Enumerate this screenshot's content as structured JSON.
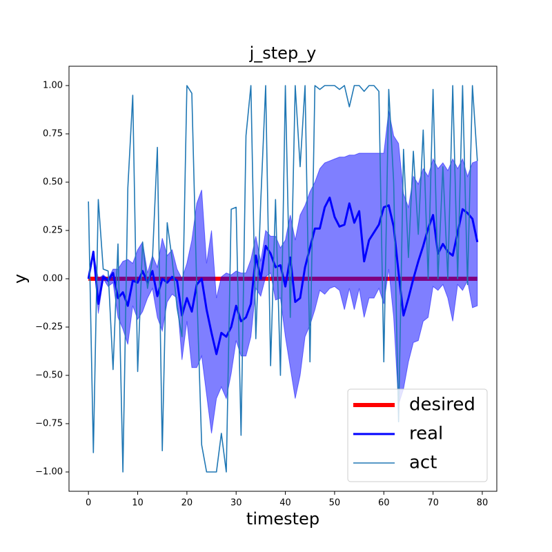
{
  "chart_data": {
    "type": "line",
    "title": "j_step_y",
    "x_label": "timestep",
    "y_label": "y",
    "x": [
      0,
      1,
      2,
      3,
      4,
      5,
      6,
      7,
      8,
      9,
      10,
      11,
      12,
      13,
      14,
      15,
      16,
      17,
      18,
      19,
      20,
      21,
      22,
      23,
      24,
      25,
      26,
      27,
      28,
      29,
      30,
      31,
      32,
      33,
      34,
      35,
      36,
      37,
      38,
      39,
      40,
      41,
      42,
      43,
      44,
      45,
      46,
      47,
      48,
      49,
      50,
      51,
      52,
      53,
      54,
      55,
      56,
      57,
      58,
      59,
      60,
      61,
      62,
      63,
      64,
      65,
      66,
      67,
      68,
      69,
      70,
      71,
      72,
      73,
      74,
      75,
      76,
      77,
      78,
      79
    ],
    "series": [
      {
        "name": "desired",
        "color": "#ff0000",
        "width": 6,
        "values": [
          0,
          0,
          0,
          0,
          0,
          0,
          0,
          0,
          0,
          0,
          0,
          0,
          0,
          0,
          0,
          0,
          0,
          0,
          0,
          0,
          0,
          0,
          0,
          0,
          0,
          0,
          0,
          0,
          0,
          0,
          0,
          0,
          0,
          0,
          0,
          0,
          0,
          0,
          0,
          0,
          0,
          0,
          0,
          0,
          0,
          0,
          0,
          0,
          0,
          0,
          0,
          0,
          0,
          0,
          0,
          0,
          0,
          0,
          0,
          0,
          0,
          0,
          0,
          0,
          0,
          0,
          0,
          0,
          0,
          0,
          0,
          0,
          0,
          0,
          0,
          0,
          0,
          0,
          0,
          0
        ]
      },
      {
        "name": "real",
        "color": "#0000ff",
        "width": 3,
        "values": [
          0.0,
          0.14,
          -0.13,
          0.01,
          -0.01,
          0.03,
          -0.1,
          -0.07,
          -0.14,
          -0.01,
          -0.02,
          0.04,
          -0.02,
          0.04,
          -0.09,
          0.0,
          -0.02,
          0.01,
          -0.01,
          -0.19,
          -0.1,
          -0.17,
          -0.03,
          0.0,
          -0.16,
          -0.28,
          -0.39,
          -0.28,
          -0.3,
          -0.25,
          -0.14,
          -0.22,
          -0.2,
          -0.13,
          0.12,
          0.0,
          0.17,
          0.13,
          0.06,
          0.07,
          -0.04,
          0.11,
          -0.12,
          -0.1,
          0.06,
          0.16,
          0.26,
          0.26,
          0.37,
          0.42,
          0.32,
          0.27,
          0.28,
          0.39,
          0.29,
          0.35,
          0.09,
          0.2,
          0.24,
          0.28,
          0.37,
          0.38,
          0.27,
          0.03,
          -0.19,
          -0.1,
          0.0,
          0.09,
          0.17,
          0.26,
          0.33,
          0.13,
          0.18,
          0.14,
          0.12,
          0.24,
          0.36,
          0.34,
          0.31,
          0.19
        ]
      },
      {
        "name": "act",
        "color": "#1f77b4",
        "width": 1.6,
        "values": [
          0.4,
          -0.9,
          0.41,
          0.05,
          0.04,
          -0.47,
          0.18,
          -1.0,
          0.47,
          0.95,
          -0.48,
          0.19,
          -0.05,
          0.1,
          0.68,
          -0.89,
          0.29,
          0.1,
          -0.15,
          -0.3,
          1.0,
          0.96,
          -0.05,
          -0.86,
          -1.0,
          -1.0,
          -1.0,
          -0.8,
          -1.0,
          0.36,
          0.37,
          -0.81,
          0.74,
          1.0,
          -0.31,
          0.4,
          1.0,
          -0.45,
          0.41,
          -0.5,
          1.0,
          -0.2,
          1.0,
          0.58,
          1.0,
          -0.43,
          1.0,
          0.98,
          1.0,
          1.0,
          1.0,
          0.98,
          1.0,
          0.89,
          1.0,
          1.0,
          0.97,
          1.0,
          1.0,
          0.97,
          -0.43,
          0.98,
          0.5,
          -0.74,
          0.67,
          0.11,
          0.66,
          0.23,
          0.77,
          0.0,
          0.98,
          0.0,
          0.58,
          0.0,
          1.0,
          0.0,
          1.0,
          -0.03,
          1.0,
          0.61
        ]
      }
    ],
    "band": {
      "color": "#0000ff",
      "alpha": 0.5,
      "upper": [
        0.0,
        0.14,
        0.0,
        0.02,
        0.0,
        0.05,
        0.05,
        0.09,
        0.1,
        0.08,
        0.15,
        0.19,
        0.03,
        0.12,
        0.06,
        0.21,
        0.12,
        0.15,
        0.05,
        0.0,
        0.08,
        0.2,
        0.39,
        0.46,
        0.08,
        0.25,
        -0.1,
        0.01,
        0.03,
        0.02,
        0.04,
        0.03,
        0.03,
        0.1,
        0.22,
        0.09,
        0.25,
        0.22,
        0.22,
        0.16,
        0.2,
        0.33,
        0.2,
        0.33,
        0.38,
        0.45,
        0.5,
        0.57,
        0.6,
        0.61,
        0.62,
        0.63,
        0.63,
        0.64,
        0.64,
        0.65,
        0.65,
        0.65,
        0.65,
        0.65,
        0.65,
        0.87,
        0.74,
        0.7,
        0.44,
        0.37,
        0.53,
        0.49,
        0.57,
        0.53,
        0.62,
        0.57,
        0.6,
        0.56,
        0.62,
        0.57,
        0.62,
        0.53,
        0.6,
        0.61
      ],
      "lower": [
        0.0,
        0.14,
        -0.18,
        0.0,
        -0.04,
        -0.02,
        -0.2,
        -0.26,
        -0.34,
        -0.14,
        -0.21,
        -0.17,
        -0.1,
        -0.05,
        -0.2,
        -0.27,
        -0.12,
        -0.08,
        -0.1,
        -0.42,
        -0.22,
        -0.46,
        -0.46,
        -0.4,
        -0.6,
        -0.8,
        -0.62,
        -0.56,
        -0.62,
        -0.49,
        -0.32,
        -0.4,
        -0.4,
        -0.3,
        -0.05,
        -0.09,
        0.01,
        0.03,
        -0.11,
        -0.1,
        -0.3,
        -0.46,
        -0.62,
        -0.5,
        -0.3,
        -0.24,
        -0.16,
        -0.06,
        -0.08,
        -0.05,
        -0.04,
        -0.06,
        -0.16,
        -0.05,
        -0.16,
        -0.05,
        -0.2,
        -0.1,
        -0.1,
        -0.05,
        -0.13,
        0.05,
        -0.2,
        -0.65,
        -0.57,
        -0.43,
        -0.33,
        -0.32,
        -0.22,
        -0.2,
        -0.04,
        -0.06,
        -0.03,
        -0.1,
        -0.22,
        -0.03,
        -0.06,
        -0.01,
        -0.15,
        -0.14
      ]
    },
    "xlim": [
      -3.95,
      82.95
    ],
    "ylim": [
      -1.1,
      1.1
    ],
    "xticks": [
      0,
      10,
      20,
      30,
      40,
      50,
      60,
      70,
      80
    ],
    "yticks": [
      {
        "value": -1,
        "label": "−1.00"
      },
      {
        "value": -0.75,
        "label": "−0.75"
      },
      {
        "value": -0.5,
        "label": "−0.50"
      },
      {
        "value": -0.25,
        "label": "−0.25"
      },
      {
        "value": 0,
        "label": "0.00"
      },
      {
        "value": 0.25,
        "label": "0.25"
      },
      {
        "value": 0.5,
        "label": "0.50"
      },
      {
        "value": 0.75,
        "label": "0.75"
      },
      {
        "value": 1,
        "label": "1.00"
      }
    ],
    "legend": "lower right"
  }
}
